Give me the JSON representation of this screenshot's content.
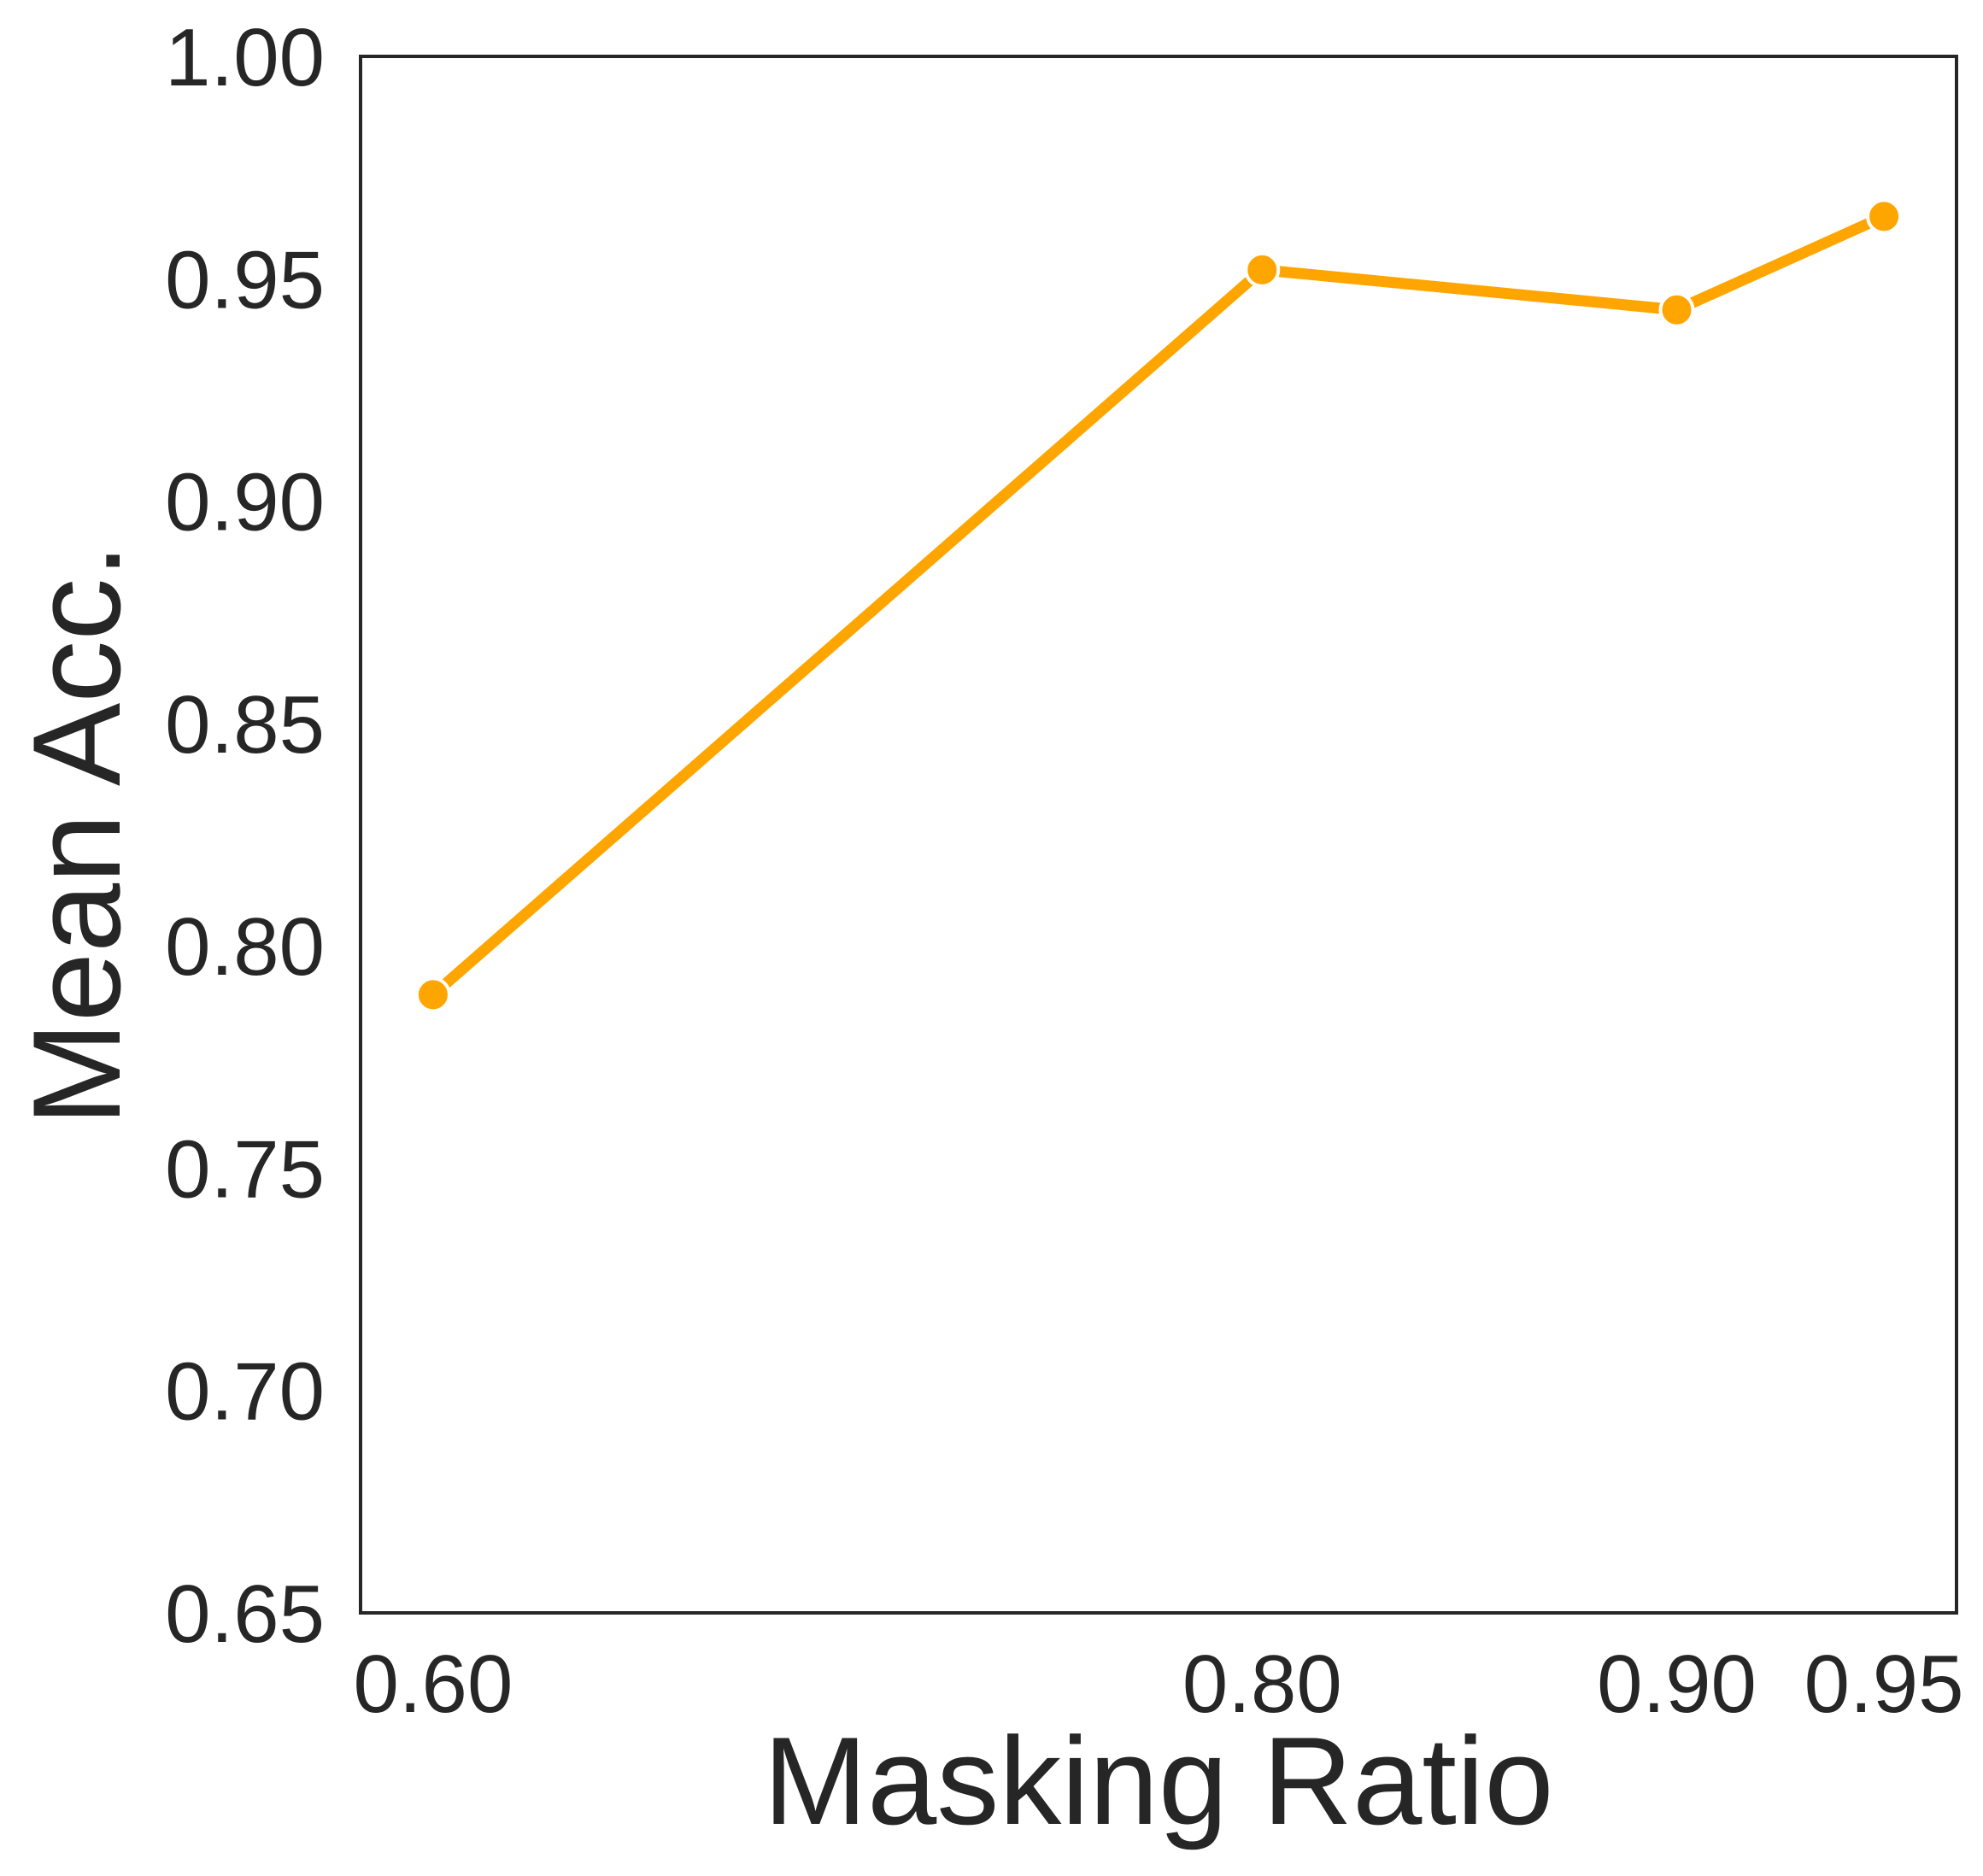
{
  "chart_data": {
    "type": "line",
    "title": "",
    "xlabel": "Masking Ratio",
    "ylabel": "Mean Acc.",
    "x": [
      0.6,
      0.8,
      0.9,
      0.95
    ],
    "x_tick_labels": [
      "0.60",
      "0.80",
      "0.90",
      "0.95"
    ],
    "xlim": [
      0.5825,
      0.9675
    ],
    "ylim": [
      0.65,
      1.0
    ],
    "y_ticks": [
      0.65,
      0.7,
      0.75,
      0.8,
      0.85,
      0.9,
      0.95,
      1.0
    ],
    "y_tick_labels": [
      "0.65",
      "0.70",
      "0.75",
      "0.80",
      "0.85",
      "0.90",
      "0.95",
      "1.00"
    ],
    "grid": false,
    "legend": "none",
    "series": [
      {
        "name": "Mean Acc.",
        "values": [
          0.789,
          0.952,
          0.943,
          0.964
        ],
        "color": "#FFA500"
      }
    ],
    "frame_color": "#262626"
  }
}
